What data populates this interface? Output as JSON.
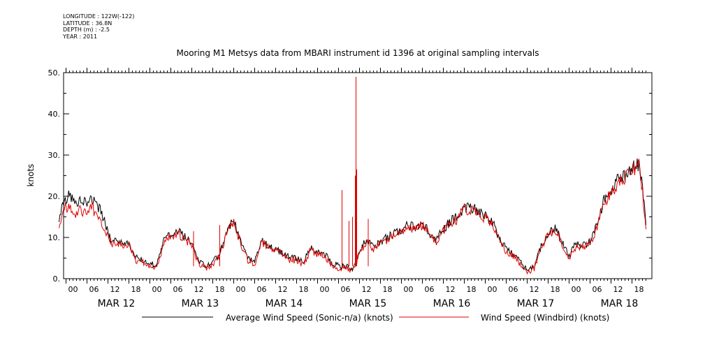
{
  "meta": {
    "longitude": "LONGITUDE : 122W(-122)",
    "latitude": "LATITUDE : 36.8N",
    "depth": "DEPTH (m) : -2.5",
    "year": "YEAR : 2011"
  },
  "chart_data": {
    "type": "line",
    "title": "Mooring M1 Metsys data from MBARI instrument id 1396 at original sampling intervals",
    "ylabel": "knots",
    "xlabel": "",
    "ylim": [
      0,
      50
    ],
    "yticks": [
      0,
      10,
      20,
      30,
      40,
      50
    ],
    "ytick_labels": [
      "0.",
      "10.",
      "20.",
      "30.",
      "40.",
      "50."
    ],
    "x_unit": "hours since MAR 11 2011 20:00",
    "xlim": [
      0,
      168
    ],
    "hour_tick_labels": [
      "00",
      "06",
      "12",
      "18",
      "00",
      "06",
      "12",
      "18",
      "00",
      "06",
      "12",
      "18",
      "00",
      "06",
      "12",
      "18",
      "00",
      "06",
      "12",
      "18",
      "00",
      "06",
      "12",
      "18",
      "00",
      "06",
      "12",
      "18"
    ],
    "day_labels": [
      "MAR 12",
      "MAR 13",
      "MAR 14",
      "MAR 15",
      "MAR 16",
      "MAR 17",
      "MAR 18"
    ],
    "grid": false,
    "legend_position": "bottom",
    "series": [
      {
        "name": "Average Wind Speed (Sonic-n/a) (knots)",
        "color": "#000000",
        "x": [
          0,
          2,
          3,
          5,
          6,
          8,
          9,
          11,
          12,
          14,
          15,
          16,
          18,
          20,
          22,
          24,
          26,
          28,
          30,
          32,
          34,
          36,
          38,
          40,
          42,
          44,
          46,
          48,
          50,
          52,
          54,
          56,
          58,
          60,
          62,
          64,
          66,
          68,
          70,
          72,
          74,
          76,
          78,
          80,
          82,
          84,
          86,
          88,
          90,
          92,
          94,
          96,
          98,
          100,
          102,
          104,
          106,
          108,
          110,
          112,
          114,
          116,
          118,
          120,
          122,
          124,
          126,
          128,
          130,
          132,
          134,
          136,
          138,
          140,
          142,
          144,
          146,
          148,
          150,
          152,
          154,
          156,
          158,
          160,
          162,
          164,
          166,
          167,
          168
        ],
        "y": [
          15,
          19.5,
          20,
          18.5,
          19.5,
          18,
          20,
          17,
          16.5,
          11,
          9,
          9,
          8.5,
          8.5,
          5,
          4.5,
          3.5,
          3.5,
          9,
          11,
          11.5,
          10,
          8.5,
          4,
          3,
          4,
          6,
          11.5,
          14.5,
          9,
          5,
          4,
          9.5,
          8,
          7,
          6.5,
          5,
          5,
          4,
          7.5,
          6.5,
          6,
          4,
          3,
          3,
          2.5,
          6.5,
          9.5,
          7.5,
          9,
          10,
          11,
          12,
          13,
          12.5,
          13.5,
          11,
          9.5,
          12,
          14,
          15,
          17.5,
          17,
          16.5,
          15,
          14,
          10,
          7,
          6,
          4,
          2,
          3,
          8,
          11,
          12.5,
          9,
          5.5,
          8.5,
          8,
          9,
          13,
          19,
          21,
          24,
          25,
          27,
          28,
          22,
          13
        ]
      },
      {
        "name": "Wind Speed (Windbird) (knots)",
        "color": "#e00000",
        "x": [
          0,
          2,
          3,
          5,
          6,
          8,
          9,
          11,
          12,
          14,
          15,
          16,
          18,
          20,
          22,
          24,
          26,
          28,
          30,
          32,
          34,
          36,
          38,
          40,
          42,
          44,
          46,
          48,
          50,
          52,
          54,
          56,
          58,
          60,
          62,
          64,
          66,
          68,
          70,
          72,
          74,
          76,
          78,
          80,
          82,
          84,
          86,
          88,
          90,
          92,
          94,
          96,
          98,
          100,
          102,
          104,
          106,
          108,
          110,
          112,
          114,
          116,
          118,
          120,
          122,
          124,
          126,
          128,
          130,
          132,
          134,
          136,
          138,
          140,
          142,
          144,
          146,
          148,
          150,
          152,
          154,
          156,
          158,
          160,
          162,
          164,
          166,
          167,
          168
        ],
        "y": [
          13,
          17.5,
          17,
          15.5,
          17,
          15.5,
          18,
          15,
          14,
          10,
          8.5,
          8.5,
          8,
          8,
          4.5,
          4,
          3,
          3,
          8.5,
          10.5,
          11,
          9.5,
          8,
          3.5,
          2.5,
          3.5,
          5.5,
          11,
          13.5,
          8.5,
          4.5,
          3.5,
          9,
          7.5,
          6.5,
          6,
          4.5,
          4.5,
          3.5,
          7,
          6,
          5.5,
          3.5,
          2.5,
          2.5,
          2,
          6,
          9,
          7,
          8.5,
          9.5,
          10.5,
          11.5,
          12.5,
          12,
          13,
          10.5,
          9,
          11.5,
          13.5,
          14.5,
          17,
          16.5,
          16,
          14.5,
          13.5,
          9.5,
          6.5,
          5.5,
          3.5,
          1.5,
          2.5,
          7.5,
          10.5,
          12,
          8.5,
          5,
          8,
          7.5,
          8.5,
          12.5,
          18.5,
          20.5,
          23.5,
          24.5,
          26.5,
          27.5,
          21,
          12
        ]
      }
    ],
    "spikes": [
      {
        "series": "Wind Speed (Windbird) (knots)",
        "x": 81,
        "y": 21.5
      },
      {
        "series": "Wind Speed (Windbird) (knots)",
        "x": 83,
        "y": 14
      },
      {
        "series": "Wind Speed (Windbird) (knots)",
        "x": 84,
        "y": 15
      },
      {
        "series": "Wind Speed (Windbird) (knots)",
        "x": 84.8,
        "y": 25
      },
      {
        "series": "Wind Speed (Windbird) (knots)",
        "x": 85,
        "y": 49
      },
      {
        "series": "Wind Speed (Windbird) (knots)",
        "x": 85.2,
        "y": 26.5
      },
      {
        "series": "Wind Speed (Windbird) (knots)",
        "x": 88.5,
        "y": 14.5
      },
      {
        "series": "Wind Speed (Windbird) (knots)",
        "x": 38.5,
        "y": 11.5
      },
      {
        "series": "Wind Speed (Windbird) (knots)",
        "x": 46,
        "y": 13
      }
    ]
  }
}
